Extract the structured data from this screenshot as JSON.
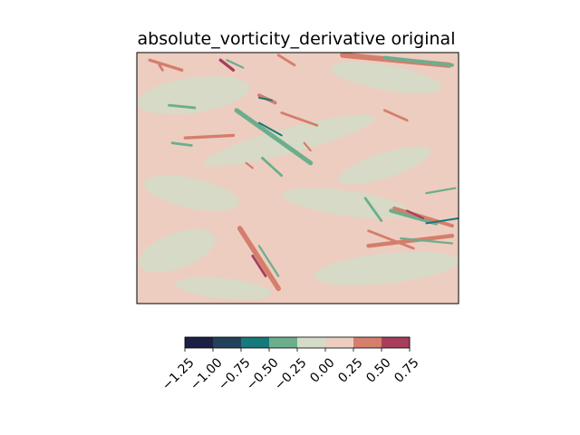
{
  "chart_data": {
    "type": "heatmap",
    "title": "absolute_vorticity_derivative original",
    "xlabel": "",
    "ylabel": "",
    "x_ticks": [],
    "y_ticks": [],
    "colorbar": {
      "orientation": "horizontal",
      "levels": [
        -1.25,
        -1.0,
        -0.75,
        -0.5,
        -0.25,
        0.0,
        0.25,
        0.5,
        0.75
      ],
      "tick_labels": [
        "−1.25",
        "−1.00",
        "−0.75",
        "−0.50",
        "−0.25",
        "0.00",
        "0.25",
        "0.50",
        "0.75"
      ],
      "band_colors": [
        "#1c1f45",
        "#22425c",
        "#16797a",
        "#6cae8c",
        "#d4dcc8",
        "#edcdc0",
        "#d47e6c",
        "#a83e5c"
      ]
    },
    "background_level": "0.00 to 0.25",
    "features": [
      {
        "level": "0.25 to 0.50",
        "x0": 0.04,
        "y0": 0.03,
        "x1": 0.14,
        "y1": 0.07,
        "w": 0.012
      },
      {
        "level": "0.25 to 0.50",
        "x0": 0.07,
        "y0": 0.05,
        "x1": 0.08,
        "y1": 0.07,
        "w": 0.01
      },
      {
        "level": "0.50 to 0.75",
        "x0": 0.26,
        "y0": 0.03,
        "x1": 0.3,
        "y1": 0.07,
        "w": 0.012
      },
      {
        "level": "-0.50 to -0.25",
        "x0": 0.28,
        "y0": 0.03,
        "x1": 0.33,
        "y1": 0.06,
        "w": 0.008
      },
      {
        "level": "0.25 to 0.50",
        "x0": 0.44,
        "y0": 0.01,
        "x1": 0.49,
        "y1": 0.05,
        "w": 0.01
      },
      {
        "level": "0.25 to 0.50",
        "x0": 0.64,
        "y0": 0.01,
        "x1": 0.97,
        "y1": 0.05,
        "w": 0.022
      },
      {
        "level": "-0.50 to -0.25",
        "x0": 0.77,
        "y0": 0.02,
        "x1": 0.98,
        "y1": 0.05,
        "w": 0.014
      },
      {
        "level": "0.25 to 0.50",
        "x0": 0.38,
        "y0": 0.17,
        "x1": 0.43,
        "y1": 0.2,
        "w": 0.014
      },
      {
        "level": "-0.75 to -0.50",
        "x0": 0.38,
        "y0": 0.18,
        "x1": 0.42,
        "y1": 0.19,
        "w": 0.006
      },
      {
        "level": "-0.50 to -0.25",
        "x0": 0.31,
        "y0": 0.23,
        "x1": 0.54,
        "y1": 0.44,
        "w": 0.018
      },
      {
        "level": "-0.75 to -0.50",
        "x0": 0.38,
        "y0": 0.28,
        "x1": 0.45,
        "y1": 0.33,
        "w": 0.006
      },
      {
        "level": "0.25 to 0.50",
        "x0": 0.15,
        "y0": 0.34,
        "x1": 0.3,
        "y1": 0.33,
        "w": 0.012
      },
      {
        "level": "0.25 to 0.50",
        "x0": 0.45,
        "y0": 0.24,
        "x1": 0.56,
        "y1": 0.29,
        "w": 0.01
      },
      {
        "level": "0.25 to 0.50",
        "x0": 0.77,
        "y0": 0.23,
        "x1": 0.84,
        "y1": 0.27,
        "w": 0.01
      },
      {
        "level": "-0.50 to -0.25",
        "x0": 0.1,
        "y0": 0.21,
        "x1": 0.18,
        "y1": 0.22,
        "w": 0.01
      },
      {
        "level": "-0.50 to -0.25",
        "x0": 0.39,
        "y0": 0.42,
        "x1": 0.45,
        "y1": 0.49,
        "w": 0.01
      },
      {
        "level": "0.25 to 0.50",
        "x0": 0.34,
        "y0": 0.44,
        "x1": 0.36,
        "y1": 0.46,
        "w": 0.008
      },
      {
        "level": "-0.50 to -0.25",
        "x0": 0.79,
        "y0": 0.63,
        "x1": 0.93,
        "y1": 0.68,
        "w": 0.016
      },
      {
        "level": "0.25 to 0.50",
        "x0": 0.8,
        "y0": 0.62,
        "x1": 0.98,
        "y1": 0.69,
        "w": 0.014
      },
      {
        "level": "0.50 to 0.75",
        "x0": 0.84,
        "y0": 0.63,
        "x1": 0.89,
        "y1": 0.66,
        "w": 0.008
      },
      {
        "level": "-0.75 to -0.50",
        "x0": 0.9,
        "y0": 0.68,
        "x1": 1.0,
        "y1": 0.66,
        "w": 0.006
      },
      {
        "level": "0.25 to 0.50",
        "x0": 0.72,
        "y0": 0.77,
        "x1": 0.98,
        "y1": 0.73,
        "w": 0.016
      },
      {
        "level": "-0.50 to -0.25",
        "x0": 0.82,
        "y0": 0.74,
        "x1": 0.98,
        "y1": 0.76,
        "w": 0.008
      },
      {
        "level": "0.25 to 0.50",
        "x0": 0.72,
        "y0": 0.71,
        "x1": 0.86,
        "y1": 0.78,
        "w": 0.01
      },
      {
        "level": "-0.50 to -0.25",
        "x0": 0.71,
        "y0": 0.58,
        "x1": 0.76,
        "y1": 0.67,
        "w": 0.01
      },
      {
        "level": "-0.50 to -0.25",
        "x0": 0.9,
        "y0": 0.56,
        "x1": 0.99,
        "y1": 0.54,
        "w": 0.008
      },
      {
        "level": "0.25 to 0.50",
        "x0": 0.32,
        "y0": 0.7,
        "x1": 0.44,
        "y1": 0.94,
        "w": 0.02
      },
      {
        "level": "0.50 to 0.75",
        "x0": 0.36,
        "y0": 0.81,
        "x1": 0.4,
        "y1": 0.89,
        "w": 0.01
      },
      {
        "level": "-0.50 to -0.25",
        "x0": 0.38,
        "y0": 0.77,
        "x1": 0.44,
        "y1": 0.89,
        "w": 0.008
      },
      {
        "level": "0.25 to 0.50",
        "x0": 0.52,
        "y0": 0.36,
        "x1": 0.54,
        "y1": 0.39,
        "w": 0.008
      },
      {
        "level": "-0.50 to -0.25",
        "x0": 0.11,
        "y0": 0.36,
        "x1": 0.17,
        "y1": 0.37,
        "w": 0.01
      }
    ]
  }
}
